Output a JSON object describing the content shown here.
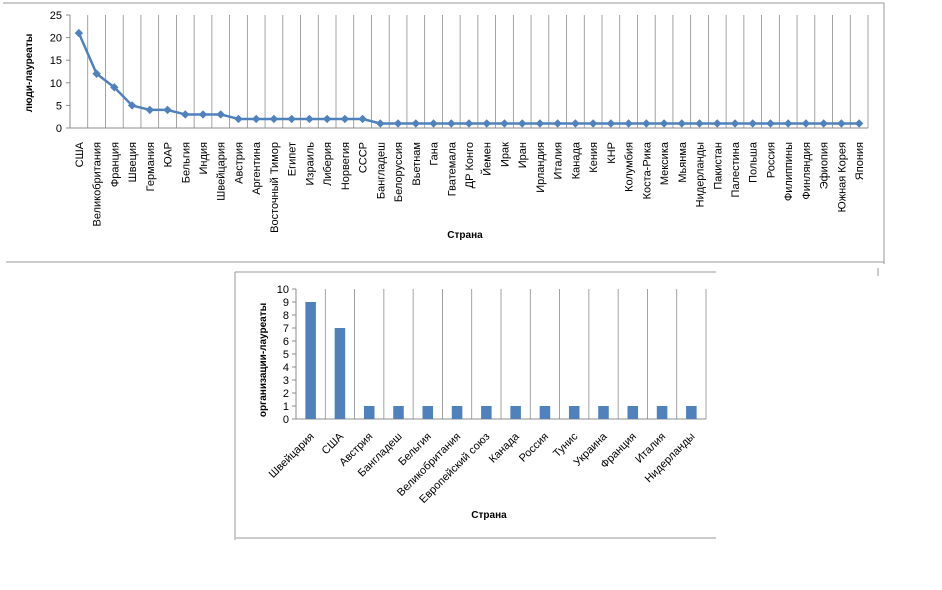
{
  "chart_data": [
    {
      "type": "line",
      "xlabel": "Страна",
      "ylabel": "люди-лауреаты",
      "ylim": [
        0,
        25
      ],
      "yticks": [
        0,
        5,
        10,
        15,
        20,
        25
      ],
      "grid": "vertical",
      "color": "#4F81BD",
      "categories": [
        "США",
        "Великобритания",
        "Франция",
        "Швеция",
        "Германия",
        "ЮАР",
        "Бельгия",
        "Индия",
        "Швейцария",
        "Австрия",
        "Аргентина",
        "Восточный Тимор",
        "Египет",
        "Израиль",
        "Либерия",
        "Норвегия",
        "СССР",
        "Бангладеш",
        "Белоруссия",
        "Вьетнам",
        "Гана",
        "Гватемала",
        "ДР Конго",
        "Йемен",
        "Ирак",
        "Иран",
        "Ирландия",
        "Италия",
        "Канада",
        "Кения",
        "КНР",
        "Колумбия",
        "Коста-Рика",
        "Мексика",
        "Мьянма",
        "Нидерланды",
        "Пакистан",
        "Палестина",
        "Польша",
        "Россия",
        "Филиппины",
        "Финляндия",
        "Эфиопия",
        "Южная Корея",
        "Япония"
      ],
      "values": [
        21,
        12,
        9,
        5,
        4,
        4,
        3,
        3,
        3,
        2,
        2,
        2,
        2,
        2,
        2,
        2,
        2,
        1,
        1,
        1,
        1,
        1,
        1,
        1,
        1,
        1,
        1,
        1,
        1,
        1,
        1,
        1,
        1,
        1,
        1,
        1,
        1,
        1,
        1,
        1,
        1,
        1,
        1,
        1,
        1
      ]
    },
    {
      "type": "bar",
      "xlabel": "Страна",
      "ylabel": "организации-лауреаты",
      "ylim": [
        0,
        10
      ],
      "yticks": [
        0,
        1,
        2,
        3,
        4,
        5,
        6,
        7,
        8,
        9,
        10
      ],
      "grid": "vertical",
      "color": "#4F81BD",
      "categories": [
        "Швейцария",
        "США",
        "Австрия",
        "Бангладеш",
        "Бельгия",
        "Великобритания",
        "Европейский союз",
        "Канада",
        "Россия",
        "Тунис",
        "Украина",
        "Франция",
        "Италия",
        "Нидерланды"
      ],
      "values": [
        9,
        7,
        1,
        1,
        1,
        1,
        1,
        1,
        1,
        1,
        1,
        1,
        1,
        1
      ]
    }
  ]
}
